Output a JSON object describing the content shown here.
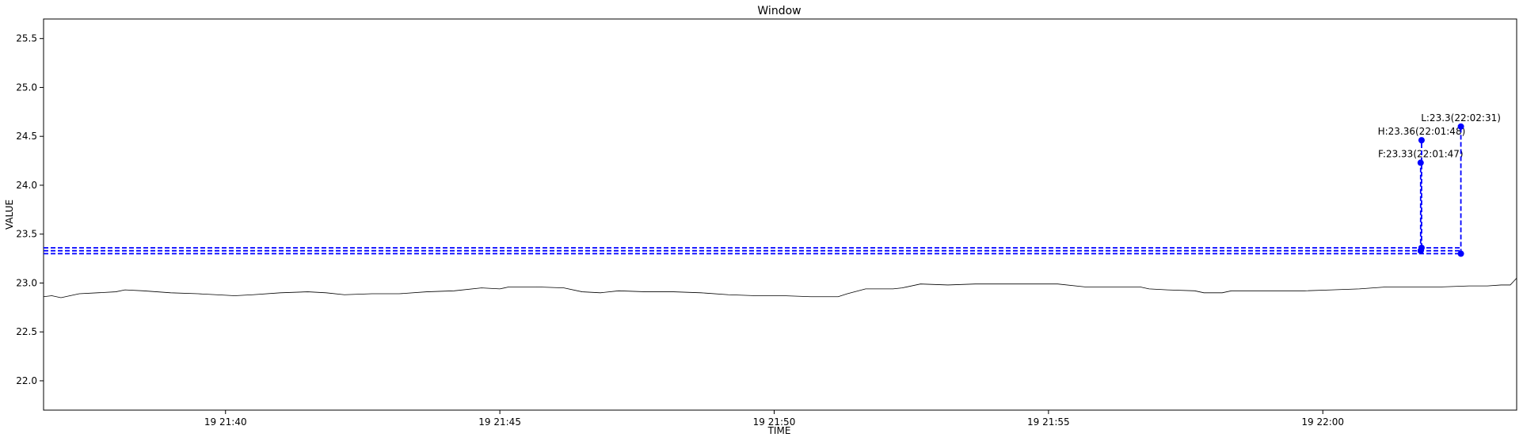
{
  "chart_data": {
    "type": "line",
    "title": "Window",
    "xlabel": "TIME",
    "ylabel": "VALUE",
    "xlim": [
      "21:36:41",
      "22:03:32"
    ],
    "ylim": [
      21.7,
      25.7
    ],
    "grid": false,
    "yticks": [
      22.0,
      22.5,
      23.0,
      23.5,
      24.0,
      24.5,
      25.0,
      25.5
    ],
    "xticks": [
      {
        "time": "21:40:00",
        "label": "19 21:40"
      },
      {
        "time": "21:45:00",
        "label": "19 21:45"
      },
      {
        "time": "21:50:00",
        "label": "19 21:50"
      },
      {
        "time": "21:55:00",
        "label": "19 21:55"
      },
      {
        "time": "22:00:00",
        "label": "19 22:00"
      }
    ],
    "series": [
      {
        "color": "#000000",
        "points": [
          [
            "21:36:41",
            22.86
          ],
          [
            "21:36:50",
            22.87
          ],
          [
            "21:37:00",
            22.85
          ],
          [
            "21:37:10",
            22.87
          ],
          [
            "21:37:20",
            22.89
          ],
          [
            "21:37:40",
            22.9
          ],
          [
            "21:38:00",
            22.91
          ],
          [
            "21:38:10",
            22.93
          ],
          [
            "21:38:30",
            22.92
          ],
          [
            "21:39:00",
            22.9
          ],
          [
            "21:39:30",
            22.89
          ],
          [
            "21:39:50",
            22.88
          ],
          [
            "21:40:10",
            22.87
          ],
          [
            "21:40:30",
            22.88
          ],
          [
            "21:41:00",
            22.9
          ],
          [
            "21:41:30",
            22.91
          ],
          [
            "21:41:50",
            22.9
          ],
          [
            "21:42:10",
            22.88
          ],
          [
            "21:42:40",
            22.89
          ],
          [
            "21:43:10",
            22.89
          ],
          [
            "21:43:40",
            22.91
          ],
          [
            "21:44:10",
            22.92
          ],
          [
            "21:44:40",
            22.95
          ],
          [
            "21:45:00",
            22.94
          ],
          [
            "21:45:10",
            22.96
          ],
          [
            "21:45:40",
            22.96
          ],
          [
            "21:46:10",
            22.95
          ],
          [
            "21:46:30",
            22.91
          ],
          [
            "21:46:50",
            22.9
          ],
          [
            "21:47:10",
            22.92
          ],
          [
            "21:47:40",
            22.91
          ],
          [
            "21:48:10",
            22.91
          ],
          [
            "21:48:40",
            22.9
          ],
          [
            "21:49:10",
            22.88
          ],
          [
            "21:49:40",
            22.87
          ],
          [
            "21:50:10",
            22.87
          ],
          [
            "21:50:40",
            22.86
          ],
          [
            "21:51:10",
            22.86
          ],
          [
            "21:51:20",
            22.89
          ],
          [
            "21:51:40",
            22.94
          ],
          [
            "21:52:10",
            22.94
          ],
          [
            "21:52:20",
            22.95
          ],
          [
            "21:52:40",
            22.99
          ],
          [
            "21:53:10",
            22.98
          ],
          [
            "21:53:40",
            22.99
          ],
          [
            "21:54:10",
            22.99
          ],
          [
            "21:54:40",
            22.99
          ],
          [
            "21:55:10",
            22.99
          ],
          [
            "21:55:40",
            22.96
          ],
          [
            "21:56:10",
            22.96
          ],
          [
            "21:56:40",
            22.96
          ],
          [
            "21:56:50",
            22.94
          ],
          [
            "21:57:10",
            22.93
          ],
          [
            "21:57:40",
            22.92
          ],
          [
            "21:57:50",
            22.9
          ],
          [
            "21:58:10",
            22.9
          ],
          [
            "21:58:20",
            22.92
          ],
          [
            "21:58:40",
            22.92
          ],
          [
            "21:59:10",
            22.92
          ],
          [
            "21:59:40",
            22.92
          ],
          [
            "22:00:10",
            22.93
          ],
          [
            "22:00:40",
            22.94
          ],
          [
            "22:01:10",
            22.96
          ],
          [
            "22:01:40",
            22.96
          ],
          [
            "22:02:10",
            22.96
          ],
          [
            "22:02:40",
            22.97
          ],
          [
            "22:03:00",
            22.97
          ],
          [
            "22:03:15",
            22.98
          ],
          [
            "22:03:25",
            22.98
          ],
          [
            "22:03:29",
            23.02
          ],
          [
            "22:03:32",
            23.05
          ]
        ]
      }
    ],
    "markers": [
      {
        "label": "F:23.33(22:01:47)",
        "time": "22:01:47",
        "value": 23.33,
        "marker_value": 24.23
      },
      {
        "label": "H:23.36(22:01:48)",
        "time": "22:01:48",
        "value": 23.36,
        "marker_value": 24.46
      },
      {
        "label": "L:23.3(22:02:31)",
        "time": "22:02:31",
        "value": 23.3,
        "marker_value": 24.6
      }
    ],
    "marker_color": "#0000ff"
  }
}
